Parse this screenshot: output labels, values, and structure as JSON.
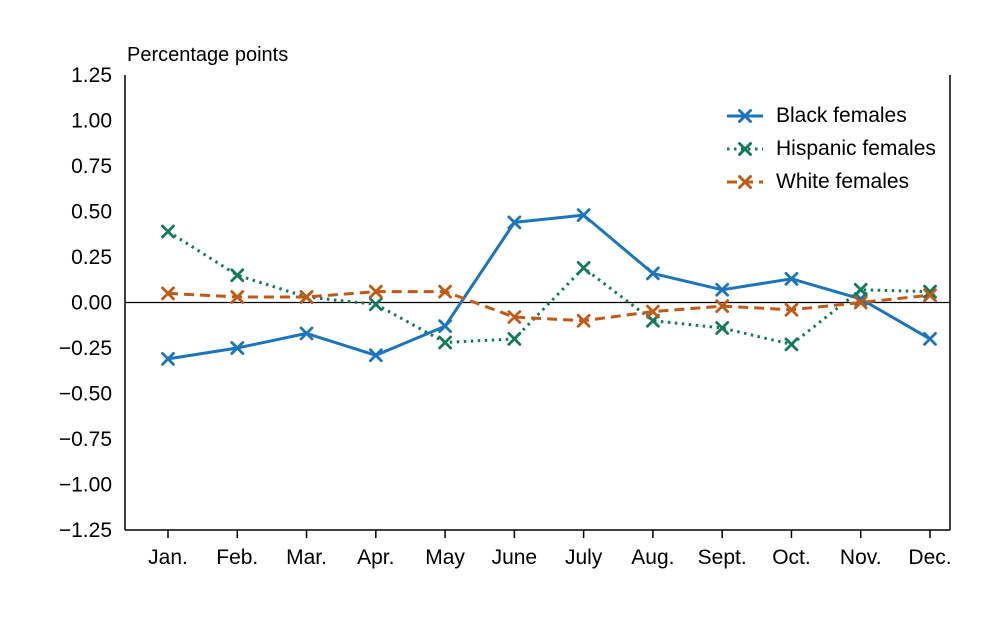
{
  "chart_data": {
    "type": "line",
    "title": "",
    "unit_label": "Percentage points",
    "xlabel": "",
    "ylabel": "",
    "ylim": [
      -1.25,
      1.25
    ],
    "ytick_step": 0.25,
    "grid": false,
    "zero_line": true,
    "marker": "x",
    "legend_position": "top-right",
    "categories": [
      "Jan.",
      "Feb.",
      "Mar.",
      "Apr.",
      "May",
      "June",
      "July",
      "Aug.",
      "Sept.",
      "Oct.",
      "Nov.",
      "Dec."
    ],
    "series": [
      {
        "name": "Black females",
        "color": "#1c75bc",
        "style": "solid",
        "values": [
          -0.31,
          -0.25,
          -0.17,
          -0.29,
          -0.13,
          0.44,
          0.48,
          0.16,
          0.07,
          0.13,
          0.02,
          -0.2
        ]
      },
      {
        "name": "Hispanic females",
        "color": "#15795c",
        "style": "dotted",
        "values": [
          0.39,
          0.15,
          0.03,
          -0.01,
          -0.22,
          -0.2,
          0.19,
          -0.1,
          -0.14,
          -0.23,
          0.07,
          0.06
        ]
      },
      {
        "name": "White females",
        "color": "#c05a17",
        "style": "dashed",
        "values": [
          0.05,
          0.03,
          0.03,
          0.06,
          0.06,
          -0.08,
          -0.1,
          -0.05,
          -0.02,
          -0.04,
          0.0,
          0.04
        ]
      }
    ]
  }
}
